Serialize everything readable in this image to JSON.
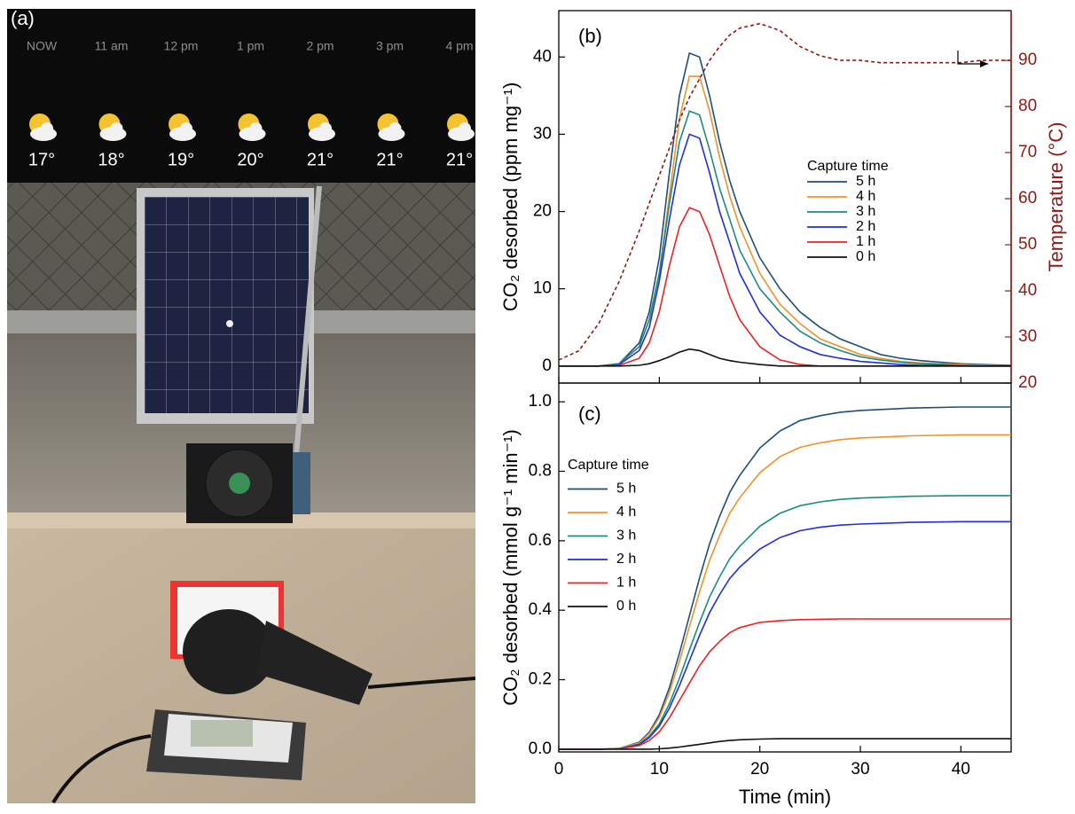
{
  "photo": {
    "label": "(a)",
    "forecast": [
      {
        "time": "NOW",
        "temp": "17°"
      },
      {
        "time": "11 am",
        "temp": "18°"
      },
      {
        "time": "12 pm",
        "temp": "19°"
      },
      {
        "time": "1 pm",
        "temp": "20°"
      },
      {
        "time": "2 pm",
        "temp": "21°"
      },
      {
        "time": "3 pm",
        "temp": "21°"
      },
      {
        "time": "4 pm",
        "temp": "21°"
      }
    ]
  },
  "chart_data": [
    {
      "type": "line",
      "panel_label": "(b)",
      "ylabel": "CO₂ desorbed (ppm mg⁻¹)",
      "y2label": "Temperature (°C)",
      "legend_title": "Capture time",
      "xlim": [
        0,
        45
      ],
      "xticks": [
        0,
        10,
        20,
        30,
        40
      ],
      "xtick_labels": false,
      "ylim": [
        -2.2,
        46
      ],
      "yticks": [
        0,
        10,
        20,
        30,
        40
      ],
      "y2lim": [
        20,
        100.8
      ],
      "y2ticks": [
        20,
        30,
        40,
        50,
        60,
        70,
        80,
        90
      ],
      "y2color": "#8b1a1a",
      "x": [
        0,
        2,
        4,
        6,
        8,
        9,
        10,
        11,
        12,
        13,
        14,
        15,
        16,
        17,
        18,
        20,
        22,
        24,
        26,
        28,
        30,
        32,
        34,
        36,
        38,
        40,
        42,
        45
      ],
      "series": [
        {
          "name": "5 h",
          "color": "#1f4e79",
          "values": [
            0,
            0,
            0,
            0.3,
            3,
            7,
            14,
            25,
            35,
            40.5,
            40,
            35,
            29,
            24,
            20,
            14,
            10,
            7,
            5,
            3.5,
            2.5,
            1.5,
            1,
            0.7,
            0.5,
            0.3,
            0.2,
            0.1
          ]
        },
        {
          "name": "4 h",
          "color": "#f0922b",
          "values": [
            0,
            0,
            0,
            0.3,
            2.5,
            6,
            12,
            22,
            32,
            37.5,
            37.5,
            33,
            27,
            22,
            18,
            12,
            8,
            5.5,
            3.5,
            2.5,
            1.5,
            1,
            0.6,
            0.4,
            0.3,
            0.2,
            0.1,
            0
          ]
        },
        {
          "name": "3 h",
          "color": "#1c8c7a",
          "values": [
            0,
            0,
            0,
            0.3,
            2.5,
            6,
            12,
            21,
            29,
            33,
            32.5,
            28,
            23,
            19,
            15,
            10,
            7,
            4.5,
            3,
            2,
            1.2,
            0.8,
            0.5,
            0.3,
            0.2,
            0.1,
            0,
            0
          ]
        },
        {
          "name": "2 h",
          "color": "#1f2fe0",
          "values": [
            0,
            0,
            0,
            0.2,
            2,
            5,
            11,
            19,
            26,
            30,
            29.5,
            25,
            20,
            16,
            12,
            7,
            4,
            2.5,
            1.5,
            1,
            0.6,
            0.4,
            0.2,
            0.1,
            0.1,
            0,
            0,
            0
          ]
        },
        {
          "name": "1 h",
          "color": "#ee2020",
          "values": [
            0,
            0,
            0,
            0.1,
            1,
            3,
            7,
            13,
            18,
            20.5,
            20,
            17,
            13,
            9,
            6,
            2.5,
            0.8,
            0.2,
            0,
            0,
            0,
            0,
            0,
            0,
            0,
            0,
            0,
            0
          ]
        },
        {
          "name": "0 h",
          "color": "#111111",
          "values": [
            0,
            0,
            0,
            0,
            0.1,
            0.3,
            0.7,
            1.2,
            1.8,
            2.2,
            2,
            1.5,
            1,
            0.7,
            0.5,
            0.2,
            0,
            0,
            0,
            0,
            0,
            0,
            0,
            0,
            0,
            0,
            0,
            0
          ]
        },
        {
          "color": "#8b1a1a",
          "axis": "y2",
          "dash": true,
          "values": [
            25,
            27,
            33,
            42,
            53,
            59,
            65,
            71,
            77,
            82,
            86,
            90,
            93,
            95.5,
            97,
            98,
            96.5,
            93,
            91,
            90,
            90,
            89.5,
            89.5,
            89.5,
            89.5,
            89.5,
            90,
            90
          ]
        }
      ]
    },
    {
      "type": "line",
      "panel_label": "(c)",
      "ylabel": "CO₂ desorbed (mmol g⁻¹ min⁻¹)",
      "xlabel": "Time (min)",
      "legend_title": "Capture time",
      "xlim": [
        0,
        45
      ],
      "xticks": [
        0,
        10,
        20,
        30,
        40
      ],
      "ylim": [
        -0.008,
        1.054
      ],
      "yticks": [
        {
          "value": 0,
          "label": "0.0"
        },
        0.2,
        0.4,
        0.6,
        0.8,
        {
          "value": 1,
          "label": "1.0"
        }
      ],
      "x": [
        0,
        4,
        6,
        8,
        9,
        10,
        11,
        12,
        13,
        14,
        15,
        16,
        17,
        18,
        20,
        22,
        24,
        26,
        28,
        30,
        35,
        40,
        45
      ],
      "series": [
        {
          "name": "5 h",
          "color": "#1f4e79",
          "values": [
            0,
            0,
            0.002,
            0.02,
            0.049,
            0.099,
            0.177,
            0.276,
            0.384,
            0.493,
            0.591,
            0.67,
            0.739,
            0.788,
            0.867,
            0.916,
            0.946,
            0.96,
            0.97,
            0.975,
            0.982,
            0.985,
            0.985
          ]
        },
        {
          "name": "4 h",
          "color": "#f0922b",
          "values": [
            0,
            0,
            0.002,
            0.018,
            0.045,
            0.091,
            0.163,
            0.253,
            0.353,
            0.453,
            0.543,
            0.615,
            0.679,
            0.724,
            0.796,
            0.842,
            0.869,
            0.882,
            0.891,
            0.896,
            0.902,
            0.905,
            0.905
          ]
        },
        {
          "name": "3 h",
          "color": "#1c8c7a",
          "values": [
            0,
            0,
            0.001,
            0.015,
            0.037,
            0.073,
            0.131,
            0.204,
            0.285,
            0.365,
            0.438,
            0.496,
            0.548,
            0.584,
            0.642,
            0.679,
            0.701,
            0.712,
            0.719,
            0.723,
            0.728,
            0.73,
            0.73
          ]
        },
        {
          "name": "2 h",
          "color": "#1f2fe0",
          "values": [
            0,
            0,
            0.001,
            0.013,
            0.033,
            0.066,
            0.118,
            0.183,
            0.255,
            0.328,
            0.393,
            0.445,
            0.491,
            0.524,
            0.576,
            0.609,
            0.629,
            0.639,
            0.645,
            0.648,
            0.653,
            0.655,
            0.655
          ]
        },
        {
          "name": "1 h",
          "color": "#ee2020",
          "values": [
            0,
            0,
            0.001,
            0.01,
            0.025,
            0.05,
            0.09,
            0.14,
            0.19,
            0.24,
            0.28,
            0.31,
            0.335,
            0.35,
            0.365,
            0.37,
            0.373,
            0.374,
            0.375,
            0.375,
            0.375,
            0.375,
            0.375
          ]
        },
        {
          "name": "0 h",
          "color": "#111111",
          "values": [
            0,
            0,
            0,
            0,
            0,
            0.001,
            0.003,
            0.006,
            0.01,
            0.014,
            0.018,
            0.022,
            0.025,
            0.027,
            0.029,
            0.03,
            0.03,
            0.03,
            0.03,
            0.03,
            0.03,
            0.03,
            0.03
          ]
        }
      ]
    }
  ]
}
